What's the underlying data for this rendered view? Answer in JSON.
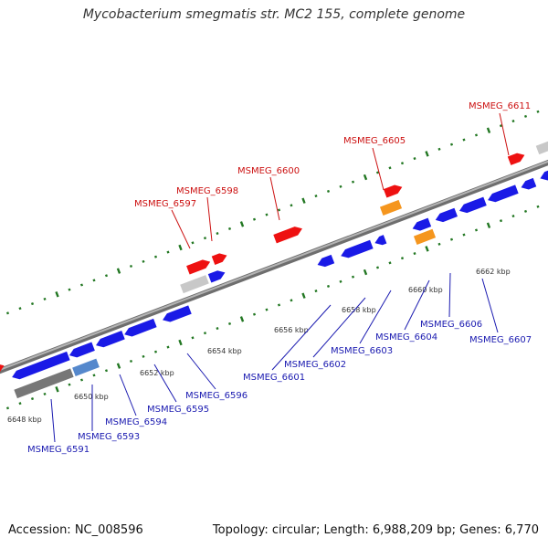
{
  "title": "Mycobacterium smegmatis str. MC2 155, complete genome",
  "accession": "Accession: NC_008596",
  "topology": "Topology: circular; Length: 6,988,209 bp; Genes: 6,770",
  "colors": {
    "forward_gene": "#ee1111",
    "reverse_gene": "#1a1ae6",
    "highlight_gene": "#f5961e",
    "pseudo_gene": "#c8c8c8",
    "backbone": "#8c8c8c",
    "tick": "#227722",
    "forward_label": "#cc1111",
    "reverse_label": "#1a1ab0"
  },
  "kbp_labels": [
    "6648 kbp",
    "6650 kbp",
    "6652 kbp",
    "6654 kbp",
    "6656 kbp",
    "6658 kbp",
    "6660 kbp",
    "6662 kbp"
  ],
  "forward_labels": [
    "MSMEG_6597",
    "MSMEG_6598",
    "MSMEG_6600",
    "MSMEG_6605",
    "MSMEG_6611"
  ],
  "reverse_labels": [
    "MSMEG_6591",
    "MSMEG_6593",
    "MSMEG_6594",
    "MSMEG_6595",
    "MSMEG_6596",
    "MSMEG_6601",
    "MSMEG_6602",
    "MSMEG_6603",
    "MSMEG_6604",
    "MSMEG_6606",
    "MSMEG_6607"
  ]
}
